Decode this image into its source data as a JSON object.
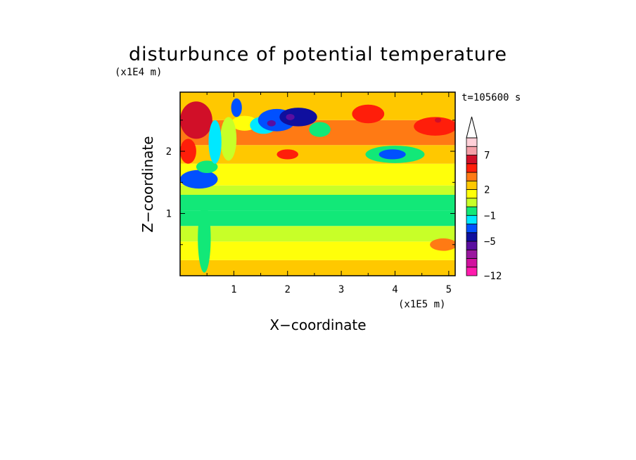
{
  "chart_data": {
    "type": "heatmap",
    "title": "disturbunce of potential temperature",
    "time_label": "t=105600 s",
    "xlabel": "X−coordinate",
    "ylabel": "Z−coordinate",
    "x_unit": "(x1E5 m)",
    "y_unit": "(x1E4 m)",
    "xlim": [
      0,
      5.12
    ],
    "ylim": [
      0,
      2.95
    ],
    "x_ticks": [
      "1",
      "2",
      "3",
      "4",
      "5"
    ],
    "x_tick_values": [
      1,
      2,
      3,
      4,
      5
    ],
    "y_ticks": [
      "1",
      "2"
    ],
    "y_tick_values": [
      1,
      2
    ],
    "colorbar": {
      "colors": [
        "#ff1aad",
        "#d1109e",
        "#9a169e",
        "#5a0ea0",
        "#0f0f9e",
        "#0050ff",
        "#00e8ff",
        "#12e878",
        "#c8ff28",
        "#ffff0a",
        "#ffc800",
        "#ff7a14",
        "#ff1e0a",
        "#d10f28",
        "#f5a0a8",
        "#ffd0d8"
      ],
      "tick_labels": [
        "−12",
        "−5",
        "−1",
        "2",
        "7"
      ],
      "tick_levels": [
        0,
        4,
        7,
        10,
        14
      ],
      "extend": "max"
    },
    "field": {
      "description_free": true,
      "bands": [
        {
          "z": [
            0.0,
            0.25
          ],
          "level": 10
        },
        {
          "z": [
            0.25,
            0.55
          ],
          "level": 9
        },
        {
          "z": [
            0.55,
            0.8
          ],
          "level": 8
        },
        {
          "z": [
            0.8,
            1.05
          ],
          "level": 7
        },
        {
          "z": [
            1.05,
            1.3
          ],
          "level": 7
        },
        {
          "z": [
            1.3,
            1.45
          ],
          "level": 8
        },
        {
          "z": [
            1.45,
            1.8
          ],
          "level": 9
        },
        {
          "z": [
            1.8,
            2.1
          ],
          "level": 10
        },
        {
          "z": [
            2.1,
            2.5
          ],
          "level": 11
        },
        {
          "z": [
            2.5,
            2.95
          ],
          "level": 10
        }
      ],
      "blobs": [
        {
          "x": 1.2,
          "z": 2.45,
          "rx": 0.25,
          "rz": 0.12,
          "level": 9
        },
        {
          "x": 1.55,
          "z": 2.42,
          "rx": 0.25,
          "rz": 0.14,
          "level": 6
        },
        {
          "x": 1.8,
          "z": 2.5,
          "rx": 0.35,
          "rz": 0.18,
          "level": 5
        },
        {
          "x": 2.2,
          "z": 2.55,
          "rx": 0.35,
          "rz": 0.15,
          "level": 4
        },
        {
          "x": 1.7,
          "z": 2.45,
          "rx": 0.08,
          "rz": 0.05,
          "level": 3
        },
        {
          "x": 2.05,
          "z": 2.55,
          "rx": 0.08,
          "rz": 0.05,
          "level": 3
        },
        {
          "x": 2.6,
          "z": 2.35,
          "rx": 0.2,
          "rz": 0.12,
          "level": 7
        },
        {
          "x": 3.5,
          "z": 2.6,
          "rx": 0.3,
          "rz": 0.15,
          "level": 12
        },
        {
          "x": 4.75,
          "z": 2.4,
          "rx": 0.4,
          "rz": 0.15,
          "level": 12
        },
        {
          "x": 4.8,
          "z": 2.5,
          "rx": 0.06,
          "rz": 0.04,
          "level": 13
        },
        {
          "x": 4.0,
          "z": 1.95,
          "rx": 0.55,
          "rz": 0.14,
          "level": 7
        },
        {
          "x": 3.95,
          "z": 1.95,
          "rx": 0.25,
          "rz": 0.08,
          "level": 5
        },
        {
          "x": 2.0,
          "z": 1.95,
          "rx": 0.2,
          "rz": 0.08,
          "level": 12
        },
        {
          "x": 0.3,
          "z": 2.5,
          "rx": 0.3,
          "rz": 0.3,
          "level": 13
        },
        {
          "x": 0.15,
          "z": 2.0,
          "rx": 0.15,
          "rz": 0.2,
          "level": 12
        },
        {
          "x": 0.35,
          "z": 1.55,
          "rx": 0.35,
          "rz": 0.15,
          "level": 5
        },
        {
          "x": 0.5,
          "z": 1.75,
          "rx": 0.2,
          "rz": 0.1,
          "level": 7
        },
        {
          "x": 0.9,
          "z": 2.2,
          "rx": 0.15,
          "rz": 0.35,
          "level": 8
        },
        {
          "x": 0.65,
          "z": 2.15,
          "rx": 0.12,
          "rz": 0.35,
          "level": 6
        },
        {
          "x": 1.05,
          "z": 2.7,
          "rx": 0.1,
          "rz": 0.15,
          "level": 5
        },
        {
          "x": 0.45,
          "z": 0.6,
          "rx": 0.12,
          "rz": 0.55,
          "level": 7
        },
        {
          "x": 4.9,
          "z": 0.5,
          "rx": 0.25,
          "rz": 0.1,
          "level": 11
        },
        {
          "x": 3.2,
          "z": 0.65,
          "rx": 0.35,
          "rz": 0.08,
          "level": 8
        }
      ]
    }
  }
}
